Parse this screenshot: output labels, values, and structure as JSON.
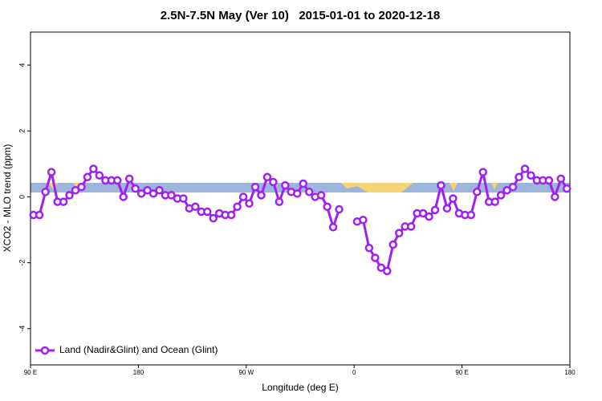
{
  "chart_data": {
    "type": "line",
    "title": "2.5N-7.5N May (Ver 10)   2015-01-01 to 2020-12-18",
    "x_label": "Longitude (deg E)",
    "y_label": "XCO2 - MLO trend (ppm)",
    "xlim": [
      90,
      540
    ],
    "xticks": [
      {
        "value": 90,
        "label": "90 E"
      },
      180,
      {
        "value": 270,
        "label": "90 W"
      },
      {
        "value": 360,
        "label": "0"
      },
      {
        "value": 450,
        "label": "90 E"
      },
      {
        "value": 540,
        "label": "180"
      }
    ],
    "ylim": [
      -5.1,
      5
    ],
    "yticks": [
      -4,
      -2,
      0,
      2,
      4
    ],
    "legend": "bottom-left",
    "x": [
      92.5,
      97.5,
      102.5,
      107.5,
      112.5,
      117.5,
      122.5,
      127.5,
      132.5,
      137.5,
      142.5,
      147.5,
      152.5,
      157.5,
      162.5,
      167.5,
      172.5,
      177.5,
      182.5,
      187.5,
      192.5,
      197.5,
      202.5,
      207.5,
      212.5,
      217.5,
      222.5,
      227.5,
      232.5,
      237.5,
      242.5,
      247.5,
      252.5,
      257.5,
      262.5,
      267.5,
      272.5,
      277.5,
      282.5,
      287.5,
      292.5,
      297.5,
      302.5,
      307.5,
      312.5,
      317.5,
      322.5,
      327.5,
      332.5,
      337.5,
      342.5,
      347.5,
      352.5,
      357.5,
      362.5,
      367.5,
      372.5,
      377.5,
      382.5,
      387.5,
      392.5,
      397.5,
      402.5,
      407.5,
      412.5,
      417.5,
      422.5,
      427.5,
      432.5,
      437.5,
      442.5,
      447.5,
      452.5,
      457.5,
      462.5,
      467.5,
      472.5,
      477.5,
      482.5,
      487.5,
      492.5,
      497.5,
      502.5,
      507.5,
      512.5,
      517.5,
      522.5,
      527.5,
      532.5,
      537.5
    ],
    "series": [
      {
        "name": "Land (Nadir&Glint) and Ocean (Glint)",
        "color": "#a020f0",
        "values": [
          -0.55,
          -0.55,
          0.15,
          0.75,
          -0.15,
          -0.15,
          0.05,
          0.2,
          0.3,
          0.6,
          0.85,
          0.65,
          0.5,
          0.5,
          0.5,
          0.0,
          0.55,
          0.25,
          0.1,
          0.2,
          0.1,
          0.2,
          0.05,
          0.05,
          -0.05,
          -0.05,
          -0.35,
          -0.3,
          -0.45,
          -0.45,
          -0.65,
          -0.5,
          -0.55,
          -0.55,
          -0.3,
          0.0,
          -0.2,
          0.3,
          0.05,
          0.6,
          0.45,
          -0.15,
          0.35,
          0.15,
          0.1,
          0.4,
          0.15,
          0.0,
          0.05,
          -0.3,
          -0.92,
          -0.38,
          null,
          null,
          -0.75,
          -0.7,
          -1.55,
          -1.85,
          -2.15,
          -2.25,
          -1.45,
          -1.1,
          -0.9,
          -0.9,
          -0.5,
          -0.5,
          -0.6,
          -0.4,
          0.35,
          -0.35,
          -0.05,
          -0.5,
          -0.55,
          -0.55,
          0.15,
          0.75,
          -0.15,
          -0.15,
          0.05,
          0.2,
          0.3,
          0.6,
          0.85,
          0.65,
          0.5,
          0.5,
          0.5,
          0.0,
          0.55,
          0.25
        ]
      }
    ]
  }
}
